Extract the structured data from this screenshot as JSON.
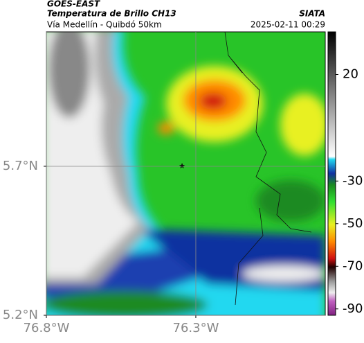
{
  "header": {
    "source": "GOES-EAST",
    "title": "Temperatura de Brillo CH13",
    "subtitle": "Vía Medellín - Quibdó 50km",
    "org": "SIATA",
    "datetime": "2025-02-11 00:29"
  },
  "map": {
    "xlim": [
      -76.8,
      -75.867
    ],
    "ylim": [
      5.2,
      6.151
    ],
    "xticks": [
      {
        "value": -76.8,
        "label": "76.8°W"
      },
      {
        "value": -76.3,
        "label": "76.3°W"
      }
    ],
    "yticks": [
      {
        "value": 5.2,
        "label": "5.2°N"
      },
      {
        "value": 5.7,
        "label": "5.7°N"
      }
    ]
  },
  "colorbar": {
    "lim": [
      -93,
      40
    ],
    "ticks": [
      20,
      -30,
      -50,
      -70,
      -90
    ]
  }
}
